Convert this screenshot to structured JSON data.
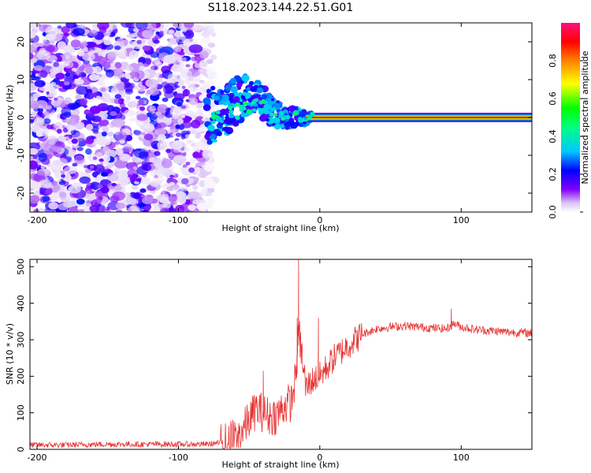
{
  "title": "S118.2023.144.22.51.G01",
  "chart_data": [
    {
      "type": "heatmap",
      "title": "S118.2023.144.22.51.G01",
      "xlabel": "Height of straight line (km)",
      "ylabel": "Frequency (Hz)",
      "xlim": [
        -205,
        150
      ],
      "ylim": [
        -25,
        25
      ],
      "xticks": [
        -200,
        -100,
        0,
        100
      ],
      "yticks": [
        -20,
        -10,
        0,
        10,
        20
      ],
      "colorbar": {
        "label": "Normalized spectral amplitude",
        "range": [
          0,
          1
        ],
        "ticks": [
          "0.0",
          "0.2",
          "0.4",
          "0.6",
          "0.8"
        ],
        "tick_values": [
          0.0,
          0.2,
          0.4,
          0.6,
          0.8
        ],
        "colors": [
          "#ffffff",
          "#c8a8f0",
          "#8000ff",
          "#0000ff",
          "#00c0ff",
          "#00ff80",
          "#00ff00",
          "#ffff00",
          "#ff8000",
          "#ff0000",
          "#ff0080"
        ]
      },
      "ridge": {
        "frequency": 0,
        "x_start": -80,
        "x_end": 150,
        "description_levels": [
          {
            "x_range": [
              -80,
              -60
            ],
            "level": 0.35
          },
          {
            "x_range": [
              -60,
              -10
            ],
            "level": 0.45
          },
          {
            "x_range": [
              -10,
              150
            ],
            "level": 0.95
          }
        ]
      },
      "noise_region": {
        "x_range": [
          -205,
          -75
        ],
        "frequency_range": [
          -25,
          25
        ],
        "level_range": [
          0.05,
          0.25
        ]
      },
      "grid": false
    },
    {
      "type": "line",
      "xlabel": "Height of straight line (km)",
      "ylabel": "SNR (10 * v/v)",
      "xlim": [
        -205,
        150
      ],
      "ylim": [
        0,
        520
      ],
      "xticks": [
        -200,
        -100,
        0,
        100
      ],
      "yticks": [
        0,
        100,
        200,
        300,
        400,
        500
      ],
      "color": "#e83030",
      "series": [
        {
          "x": [
            -205,
            -180,
            -150,
            -120,
            -100,
            -80,
            -70,
            -60,
            -55,
            -50,
            -45,
            -40,
            -35,
            -30,
            -25,
            -20,
            -17,
            -15,
            -14,
            -10,
            -5,
            0,
            10,
            20,
            30,
            40,
            50,
            60,
            70,
            80,
            90,
            95,
            100,
            110,
            120,
            130,
            140,
            150
          ],
          "y": [
            12,
            12,
            14,
            14,
            14,
            14,
            18,
            30,
            50,
            80,
            110,
            100,
            90,
            95,
            120,
            130,
            200,
            310,
            300,
            170,
            190,
            200,
            250,
            285,
            315,
            330,
            335,
            338,
            335,
            332,
            330,
            345,
            335,
            328,
            325,
            322,
            320,
            318
          ],
          "spikes": [
            {
              "x": -40,
              "y": 215
            },
            {
              "x": -16,
              "y": 360
            },
            {
              "x": -15,
              "y": 520
            },
            {
              "x": -14,
              "y": 300
            },
            {
              "x": -1,
              "y": 360
            },
            {
              "x": 93,
              "y": 385
            }
          ],
          "noise_amplitude": [
            {
              "x_range": [
                -205,
                -70
              ],
              "amp": 8
            },
            {
              "x_range": [
                -70,
                -10
              ],
              "amp": 55
            },
            {
              "x_range": [
                -10,
                30
              ],
              "amp": 40
            },
            {
              "x_range": [
                30,
                150
              ],
              "amp": 12
            }
          ]
        }
      ],
      "grid": false
    }
  ]
}
